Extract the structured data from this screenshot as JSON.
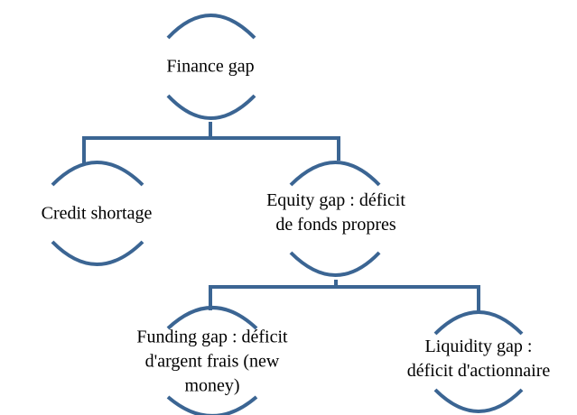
{
  "nodes": [
    {
      "lines": [
        "Finance gap"
      ]
    },
    {
      "lines": [
        "Credit shortage"
      ]
    },
    {
      "lines": [
        "Equity gap : déficit",
        "de fonds propres"
      ]
    },
    {
      "lines": [
        "Funding gap : déficit",
        "d'argent frais (new",
        "money)"
      ]
    },
    {
      "lines": [
        "Liquidity gap :",
        "déficit d'actionnaire"
      ]
    }
  ]
}
